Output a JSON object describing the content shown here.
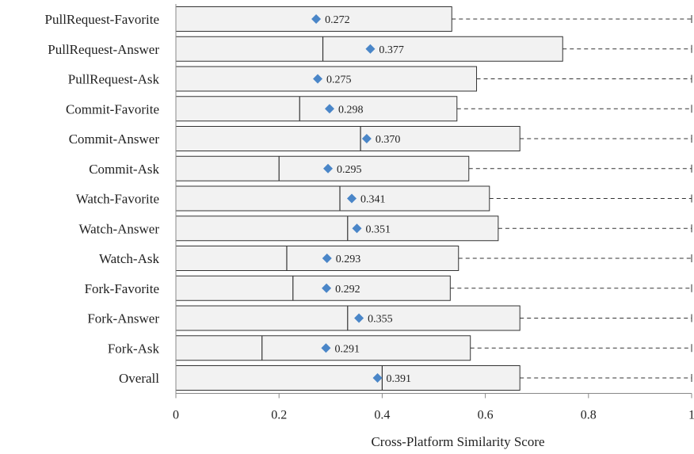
{
  "chart_data": {
    "type": "boxplot",
    "orientation": "horizontal",
    "xlabel": "Cross-Platform Similarity Score",
    "xlim": [
      0,
      1
    ],
    "xticks": [
      "0",
      "0.2",
      "0.4",
      "0.6",
      "0.8",
      "1"
    ],
    "tick_values": [
      0,
      0.2,
      0.4,
      0.6,
      0.8,
      1
    ],
    "colors": {
      "box_fill": "#f2f2f2",
      "box_stroke": "#333333",
      "marker": "#4a86c8"
    },
    "categories": [
      "PullRequest-Favorite",
      "PullRequest-Answer",
      "PullRequest-Ask",
      "Commit-Favorite",
      "Commit-Answer",
      "Commit-Ask",
      "Watch-Favorite",
      "Watch-Answer",
      "Watch-Ask",
      "Fork-Favorite",
      "Fork-Answer",
      "Fork-Ask",
      "Overall"
    ],
    "boxes": [
      {
        "q1": 0.0,
        "median": 0.0,
        "q3": 0.535,
        "max": 1.0,
        "mean": 0.272,
        "mean_label": "0.272"
      },
      {
        "q1": 0.0,
        "median": 0.285,
        "q3": 0.75,
        "max": 1.0,
        "mean": 0.377,
        "mean_label": "0.377"
      },
      {
        "q1": 0.0,
        "median": 0.0,
        "q3": 0.583,
        "max": 1.0,
        "mean": 0.275,
        "mean_label": "0.275"
      },
      {
        "q1": 0.0,
        "median": 0.24,
        "q3": 0.545,
        "max": 1.0,
        "mean": 0.298,
        "mean_label": "0.298"
      },
      {
        "q1": 0.0,
        "median": 0.358,
        "q3": 0.667,
        "max": 1.0,
        "mean": 0.37,
        "mean_label": "0.370"
      },
      {
        "q1": 0.0,
        "median": 0.2,
        "q3": 0.568,
        "max": 1.0,
        "mean": 0.295,
        "mean_label": "0.295"
      },
      {
        "q1": 0.0,
        "median": 0.318,
        "q3": 0.608,
        "max": 1.0,
        "mean": 0.341,
        "mean_label": "0.341"
      },
      {
        "q1": 0.0,
        "median": 0.333,
        "q3": 0.625,
        "max": 1.0,
        "mean": 0.351,
        "mean_label": "0.351"
      },
      {
        "q1": 0.0,
        "median": 0.215,
        "q3": 0.548,
        "max": 1.0,
        "mean": 0.293,
        "mean_label": "0.293"
      },
      {
        "q1": 0.0,
        "median": 0.227,
        "q3": 0.532,
        "max": 1.0,
        "mean": 0.292,
        "mean_label": "0.292"
      },
      {
        "q1": 0.0,
        "median": 0.333,
        "q3": 0.667,
        "max": 1.0,
        "mean": 0.355,
        "mean_label": "0.355"
      },
      {
        "q1": 0.0,
        "median": 0.167,
        "q3": 0.571,
        "max": 1.0,
        "mean": 0.291,
        "mean_label": "0.291"
      },
      {
        "q1": 0.0,
        "median": 0.4,
        "q3": 0.667,
        "max": 1.0,
        "mean": 0.391,
        "mean_label": "0.391"
      }
    ]
  }
}
